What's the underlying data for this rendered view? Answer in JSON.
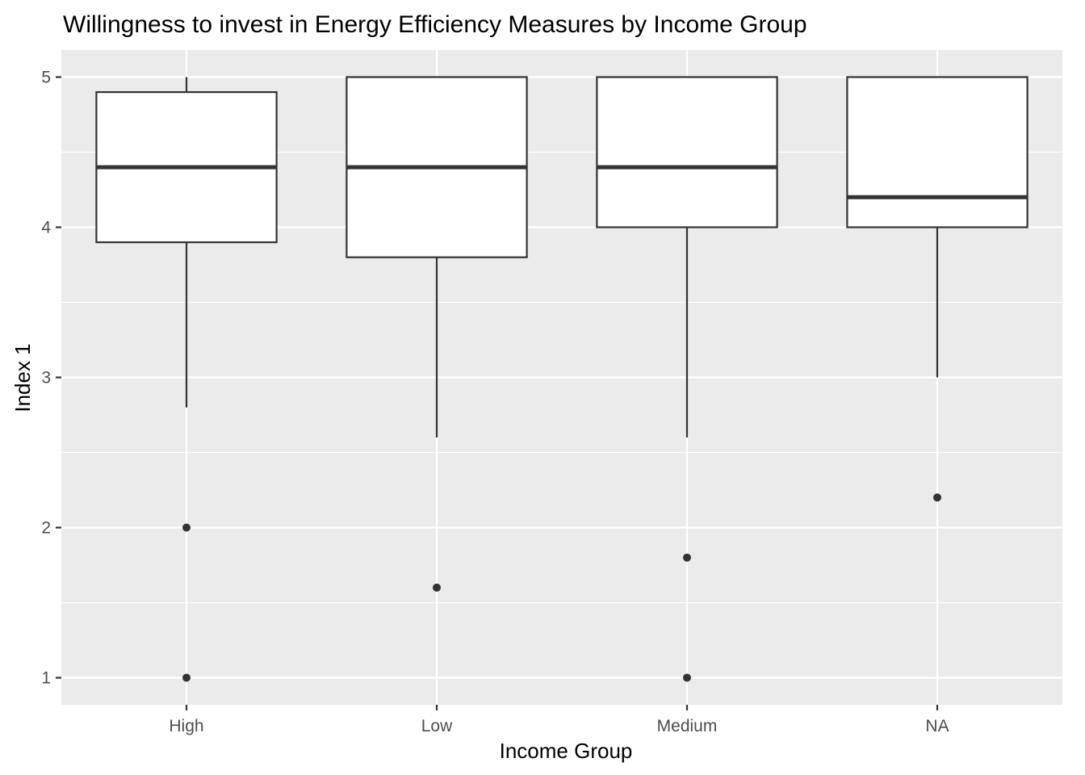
{
  "chart_data": {
    "type": "boxplot",
    "title": "Willingness to invest in Energy Efficiency Measures by Income Group",
    "xlabel": "Income Group",
    "ylabel": "Index 1",
    "categories": [
      "High",
      "Low",
      "Medium",
      "NA"
    ],
    "yticks": [
      1,
      2,
      3,
      4,
      5
    ],
    "ylim": [
      0.82,
      5.18
    ],
    "grid": true,
    "legend": "none",
    "colors": {
      "panel": "#ebebeb",
      "grid": "#ffffff",
      "box_fill": "#ffffff",
      "box_line": "#333333",
      "tick_label": "#4d4d4d"
    },
    "boxes": [
      {
        "category": "High",
        "whisker_low": 2.8,
        "q1": 3.9,
        "median": 4.4,
        "q3": 4.9,
        "whisker_high": 5.0,
        "outliers": [
          2.0,
          1.0
        ]
      },
      {
        "category": "Low",
        "whisker_low": 2.6,
        "q1": 3.8,
        "median": 4.4,
        "q3": 5.0,
        "whisker_high": 5.0,
        "outliers": [
          1.6
        ]
      },
      {
        "category": "Medium",
        "whisker_low": 2.6,
        "q1": 4.0,
        "median": 4.4,
        "q3": 5.0,
        "whisker_high": 5.0,
        "outliers": [
          1.8,
          1.0
        ]
      },
      {
        "category": "NA",
        "whisker_low": 3.0,
        "q1": 4.0,
        "median": 4.2,
        "q3": 5.0,
        "whisker_high": 5.0,
        "outliers": [
          2.2
        ]
      }
    ]
  }
}
